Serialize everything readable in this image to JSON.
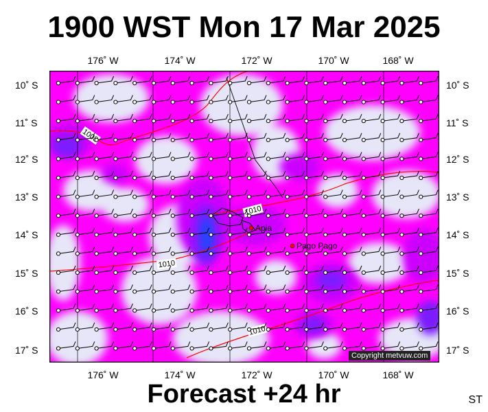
{
  "title": "1900 WST Mon 17 Mar 2025",
  "subtitle": "Forecast +24 hr",
  "station_code": "ST",
  "copyright": "Copyright metvuw.com",
  "lon_labels": [
    "176˚ W",
    "174˚ W",
    "172˚ W",
    "170˚ W",
    "168˚ W"
  ],
  "lat_labels": [
    "10˚ S",
    "11˚ S",
    "12˚ S",
    "13˚ S",
    "14˚ S",
    "15˚ S",
    "16˚ S",
    "17˚ S"
  ],
  "places": [
    {
      "name": "Apia",
      "lon": -171.76,
      "lat": -13.83
    },
    {
      "name": "Pago Pago",
      "lon": -170.7,
      "lat": -14.28
    }
  ],
  "isobar_labels": [
    "1008",
    "1010",
    "1010",
    "1010"
  ],
  "colors": {
    "land": "#e6e6f8",
    "rain_light": "#ff00ff",
    "rain_medium": "#cc00ff",
    "rain_heavy": "#7a1cff",
    "rain_extreme": "#1e46ff",
    "isobar": "#ff0000",
    "barb": "#000000"
  }
}
